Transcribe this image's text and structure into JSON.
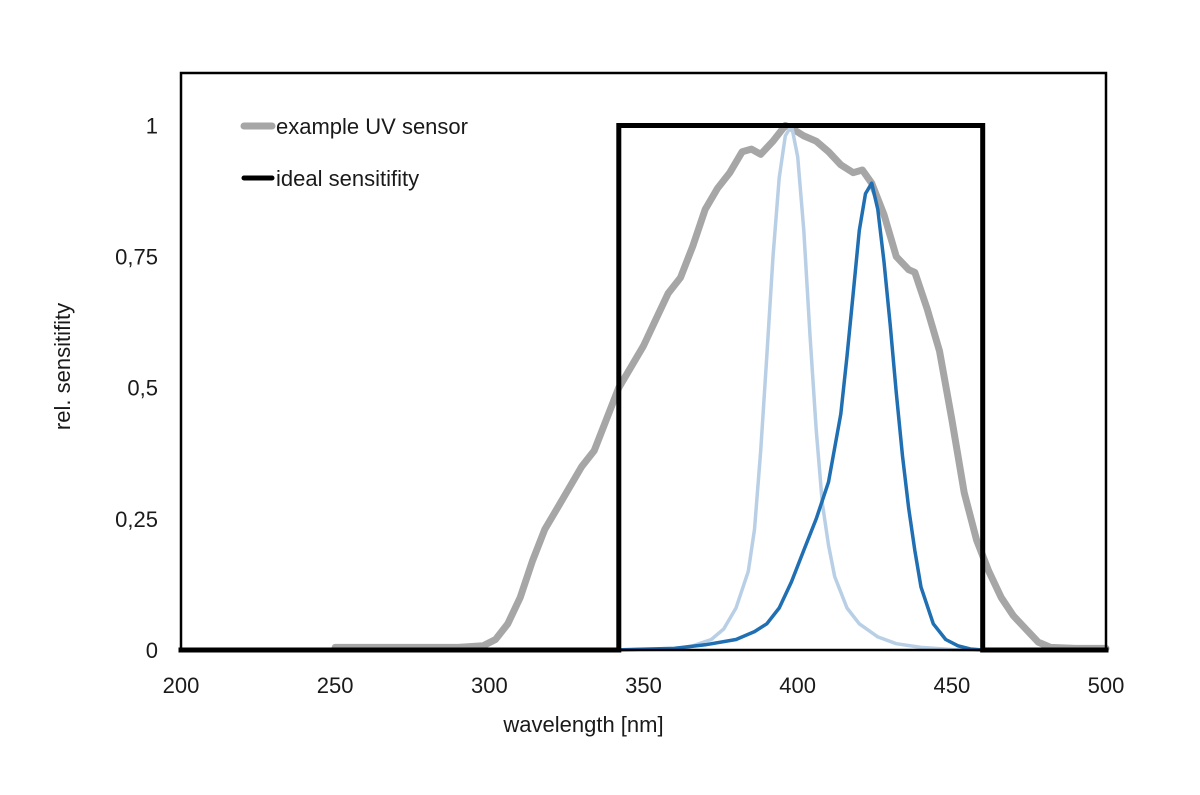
{
  "chart_data": {
    "type": "line",
    "xlabel": "wavelength [nm]",
    "ylabel": "rel. sensitifity",
    "xlim": [
      200,
      500
    ],
    "ylim": [
      0,
      1.1
    ],
    "x_ticks": [
      200,
      250,
      300,
      350,
      400,
      450,
      500
    ],
    "x_tick_labels": [
      "200",
      "250",
      "300",
      "350",
      "400",
      "450",
      "500"
    ],
    "y_ticks": [
      0,
      0.25,
      0.5,
      0.75,
      1
    ],
    "y_tick_labels": [
      "0",
      "0,25",
      "0,5",
      "0,75",
      "1"
    ],
    "grid": false,
    "legend_position": "top-left",
    "series": [
      {
        "name": "example UV sensor",
        "color": "#a6a6a6",
        "x": [
          250,
          270,
          290,
          298,
          302,
          306,
          310,
          314,
          318,
          322,
          326,
          330,
          334,
          338,
          342,
          346,
          350,
          354,
          358,
          362,
          366,
          370,
          374,
          378,
          382,
          385,
          388,
          392,
          396,
          398,
          402,
          406,
          410,
          414,
          418,
          421,
          424,
          428,
          432,
          436,
          438,
          442,
          446,
          450,
          454,
          458,
          462,
          466,
          470,
          474,
          478,
          482,
          490,
          500
        ],
        "y": [
          0.005,
          0.005,
          0.005,
          0.008,
          0.02,
          0.05,
          0.1,
          0.17,
          0.23,
          0.27,
          0.31,
          0.35,
          0.38,
          0.44,
          0.5,
          0.54,
          0.58,
          0.63,
          0.68,
          0.71,
          0.77,
          0.84,
          0.88,
          0.91,
          0.95,
          0.955,
          0.945,
          0.97,
          1.0,
          0.995,
          0.98,
          0.97,
          0.95,
          0.925,
          0.91,
          0.915,
          0.89,
          0.83,
          0.75,
          0.725,
          0.72,
          0.65,
          0.57,
          0.44,
          0.3,
          0.21,
          0.15,
          0.1,
          0.065,
          0.04,
          0.015,
          0.005,
          0.003,
          0.003
        ]
      },
      {
        "name": "ideal sensitifity",
        "color": "#000000",
        "x": [
          200,
          342,
          342,
          460,
          460,
          500
        ],
        "y": [
          0,
          0,
          1,
          1,
          0,
          0
        ]
      },
      {
        "name": "",
        "color": "#b8cfe6",
        "x": [
          340,
          360,
          366,
          372,
          376,
          380,
          384,
          386,
          388,
          390,
          392,
          394,
          396,
          398,
          400,
          402,
          404,
          406,
          408,
          410,
          412,
          416,
          420,
          426,
          432,
          440,
          450,
          460
        ],
        "y": [
          0,
          0.002,
          0.008,
          0.02,
          0.04,
          0.08,
          0.15,
          0.23,
          0.38,
          0.56,
          0.75,
          0.9,
          0.98,
          1.0,
          0.94,
          0.8,
          0.6,
          0.42,
          0.28,
          0.2,
          0.14,
          0.08,
          0.05,
          0.025,
          0.012,
          0.005,
          0.001,
          0
        ]
      },
      {
        "name": "",
        "color": "#1f6fb2",
        "x": [
          340,
          360,
          370,
          380,
          386,
          390,
          394,
          398,
          402,
          406,
          410,
          414,
          416,
          418,
          420,
          422,
          424,
          426,
          428,
          430,
          432,
          434,
          436,
          438,
          440,
          444,
          448,
          452,
          456,
          460
        ],
        "y": [
          0,
          0.003,
          0.01,
          0.02,
          0.035,
          0.05,
          0.08,
          0.13,
          0.19,
          0.25,
          0.32,
          0.45,
          0.56,
          0.68,
          0.8,
          0.87,
          0.89,
          0.84,
          0.74,
          0.62,
          0.49,
          0.37,
          0.27,
          0.19,
          0.12,
          0.05,
          0.02,
          0.008,
          0.002,
          0
        ]
      }
    ]
  }
}
